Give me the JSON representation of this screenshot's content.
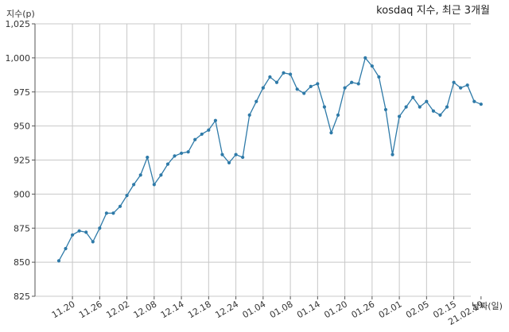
{
  "chart_data": {
    "type": "line",
    "title": "kosdaq 지수, 최근 3개월",
    "ylabel": "지수(p)",
    "xlabel": "날짜(일)",
    "ylim": [
      825,
      1025
    ],
    "yticks": [
      825,
      850,
      875,
      900,
      925,
      950,
      975,
      1000,
      1025
    ],
    "ytick_labels": [
      "825",
      "850",
      "875",
      "900",
      "925",
      "950",
      "975",
      "1,000",
      "1,025"
    ],
    "grid": true,
    "x_index_range": [
      -3.5,
      60.5
    ],
    "xticks": [
      {
        "index": 2,
        "label": "11.20"
      },
      {
        "index": 6,
        "label": "11.26"
      },
      {
        "index": 10,
        "label": "12.02"
      },
      {
        "index": 14,
        "label": "12.08"
      },
      {
        "index": 18,
        "label": "12.14"
      },
      {
        "index": 22,
        "label": "12.18"
      },
      {
        "index": 26,
        "label": "12.24"
      },
      {
        "index": 30,
        "label": "01.04"
      },
      {
        "index": 34,
        "label": "01.08"
      },
      {
        "index": 38,
        "label": "01.14"
      },
      {
        "index": 42,
        "label": "01.20"
      },
      {
        "index": 46,
        "label": "01.26"
      },
      {
        "index": 50,
        "label": "02.01"
      },
      {
        "index": 54,
        "label": "02.05"
      },
      {
        "index": 58,
        "label": "02.15"
      },
      {
        "index": 62,
        "label": "21.02.19"
      }
    ],
    "series": [
      {
        "color": "#2e7aa8",
        "values": [
          851,
          860,
          870,
          873,
          872,
          865,
          875,
          886,
          886,
          891,
          899,
          907,
          914,
          927,
          907,
          914,
          922,
          928,
          930,
          931,
          940,
          944,
          947,
          954,
          929,
          923,
          929,
          927,
          958,
          968,
          978,
          986,
          982,
          989,
          988,
          977,
          974,
          979,
          981,
          964,
          945,
          958,
          978,
          982,
          981,
          1000,
          994,
          986,
          962,
          929,
          957,
          964,
          971,
          964,
          968,
          961,
          958,
          964,
          982,
          978,
          980,
          968,
          966
        ]
      }
    ]
  }
}
